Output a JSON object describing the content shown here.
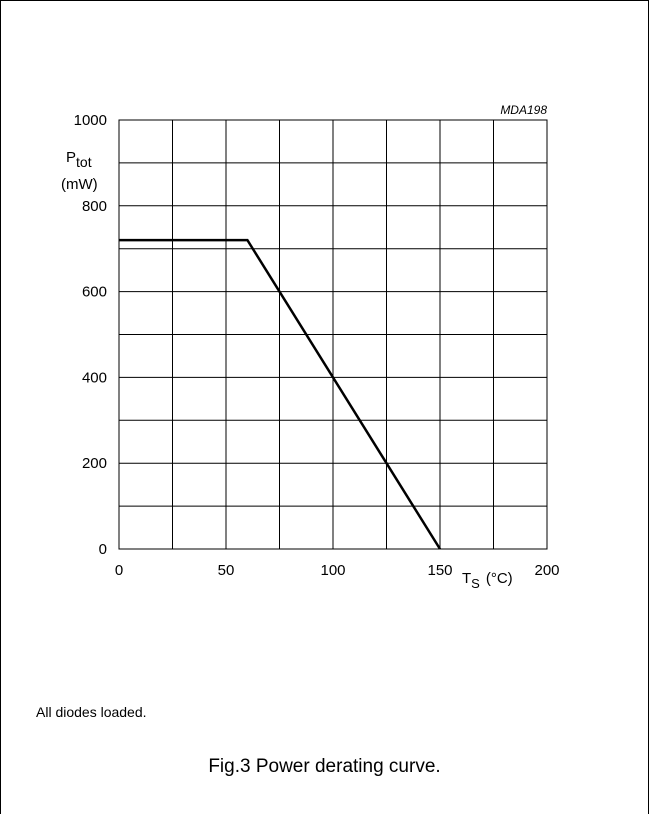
{
  "figure_code": "MDA198",
  "note": "All diodes loaded.",
  "caption": "Fig.3  Power derating curve.",
  "chart_data": {
    "type": "line",
    "ylabel_main": "P",
    "ylabel_sub": "tot",
    "ylabel_unit": "(mW)",
    "xlabel_main": "T",
    "xlabel_sub": "S",
    "xlabel_unit": "(°C)",
    "xlim": [
      0,
      200
    ],
    "ylim": [
      0,
      1000
    ],
    "x_ticks": [
      0,
      50,
      100,
      150,
      200
    ],
    "y_ticks": [
      0,
      200,
      400,
      600,
      800,
      1000
    ],
    "x_ticklabels": [
      "0",
      "50",
      "100",
      "150",
      "200"
    ],
    "y_ticklabels": [
      "0",
      "200",
      "400",
      "600",
      "800",
      "1000"
    ],
    "x_grid_step": 25,
    "y_grid_step": 100,
    "grid": true,
    "series": [
      {
        "x": [
          0,
          60,
          150
        ],
        "y": [
          720,
          720,
          0
        ],
        "color": "#000000"
      }
    ]
  }
}
